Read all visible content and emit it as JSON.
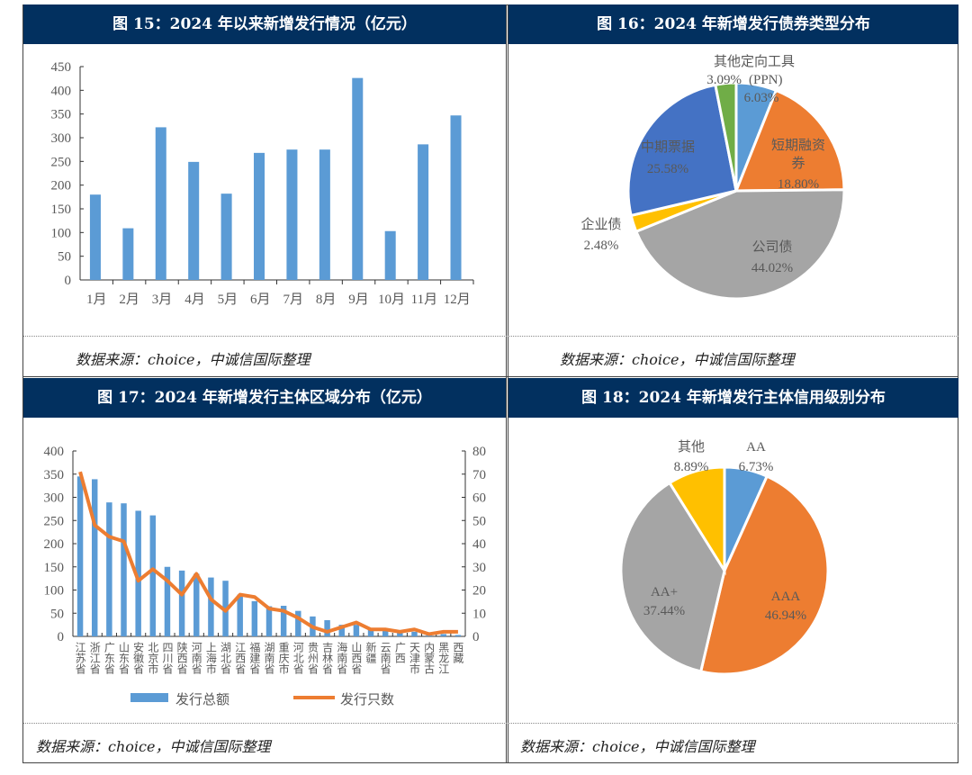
{
  "panels": {
    "fig15": {
      "title": "图 15：2024 年以来新增发行情况（亿元）",
      "source": "数据来源：choice，中诚信国际整理"
    },
    "fig16": {
      "title": "图 16：2024 年新增发行债券类型分布",
      "source": "数据来源：choice，中诚信国际整理"
    },
    "fig17": {
      "title": "图 17：2024 年新增发行主体区域分布（亿元）",
      "source": "数据来源：choice，中诚信国际整理"
    },
    "fig18": {
      "title": "图 18：2024 年新增发行主体信用级别分布",
      "source": "数据来源：choice，中诚信国际整理"
    }
  },
  "chart_data": [
    {
      "type": "bar",
      "categories": [
        "1月",
        "2月",
        "3月",
        "4月",
        "5月",
        "6月",
        "7月",
        "8月",
        "9月",
        "10月",
        "11月",
        "12月"
      ],
      "values": [
        180,
        109,
        322,
        249,
        182,
        268,
        275,
        275,
        426,
        103,
        286,
        347
      ],
      "ylim": [
        0,
        450
      ],
      "yticks": [
        "0",
        "50",
        "100",
        "150",
        "200",
        "250",
        "300",
        "350",
        "400",
        "450"
      ],
      "color": "#5b9bd5",
      "grid": false
    },
    {
      "type": "pie",
      "slices": [
        {
          "label": "(PPN)",
          "pct": "6.03%",
          "value": 6.03,
          "color": "#5b9bd5"
        },
        {
          "label": "短期融资券",
          "pct": "18.80%",
          "value": 18.8,
          "color": "#ed7d31"
        },
        {
          "label": "公司债",
          "pct": "44.02%",
          "value": 44.02,
          "color": "#a5a5a5"
        },
        {
          "label": "企业债",
          "pct": "2.48%",
          "value": 2.48,
          "color": "#ffc000"
        },
        {
          "label": "中期票据",
          "pct": "25.58%",
          "value": 25.58,
          "color": "#4472c4"
        },
        {
          "label": "其他定向工具",
          "pct": "3.09%",
          "value": 3.09,
          "color": "#70ad47"
        }
      ]
    },
    {
      "type": "bar+line",
      "categories": [
        "江苏省",
        "浙江省",
        "广东省",
        "山东省",
        "安徽省",
        "北京市",
        "四川省",
        "陕西省",
        "河南省",
        "上海市",
        "湖北省",
        "江西省",
        "福建省",
        "湖南省",
        "重庆市",
        "河北省",
        "贵州省",
        "吉林省",
        "海南省",
        "山西省",
        "新疆",
        "云南省",
        "广西",
        "天津市",
        "内蒙古",
        "黑龙江",
        "西藏"
      ],
      "series": [
        {
          "name": "发行总额",
          "type": "bar",
          "axis": "left",
          "color": "#5b9bd5",
          "values": [
            345,
            339,
            289,
            287,
            271,
            261,
            150,
            142,
            135,
            127,
            120,
            90,
            76,
            65,
            66,
            55,
            43,
            35,
            25,
            25,
            15,
            14,
            12,
            10,
            6,
            5,
            3
          ]
        },
        {
          "name": "发行只数",
          "type": "line",
          "axis": "right",
          "color": "#ed7d31",
          "values": [
            71,
            48,
            43,
            41,
            24,
            29,
            24,
            18,
            27,
            16,
            11,
            18,
            17,
            12,
            11,
            8,
            4,
            2,
            4,
            6,
            3,
            3,
            2,
            3,
            1,
            2,
            2
          ]
        }
      ],
      "ylim_left": [
        0,
        400
      ],
      "ylim_right": [
        0,
        80
      ],
      "yticks_left": [
        "0",
        "50",
        "100",
        "150",
        "200",
        "250",
        "300",
        "350",
        "400"
      ],
      "yticks_right": [
        "0",
        "10",
        "20",
        "30",
        "40",
        "50",
        "60",
        "70",
        "80"
      ],
      "legend": "bottom"
    },
    {
      "type": "pie",
      "slices": [
        {
          "label": "AA",
          "pct": "6.73%",
          "value": 6.73,
          "color": "#5b9bd5"
        },
        {
          "label": "AAA",
          "pct": "46.94%",
          "value": 46.94,
          "color": "#ed7d31"
        },
        {
          "label": "AA+",
          "pct": "37.44%",
          "value": 37.44,
          "color": "#a5a5a5"
        },
        {
          "label": "其他",
          "pct": "8.89%",
          "value": 8.89,
          "color": "#ffc000"
        }
      ]
    }
  ]
}
